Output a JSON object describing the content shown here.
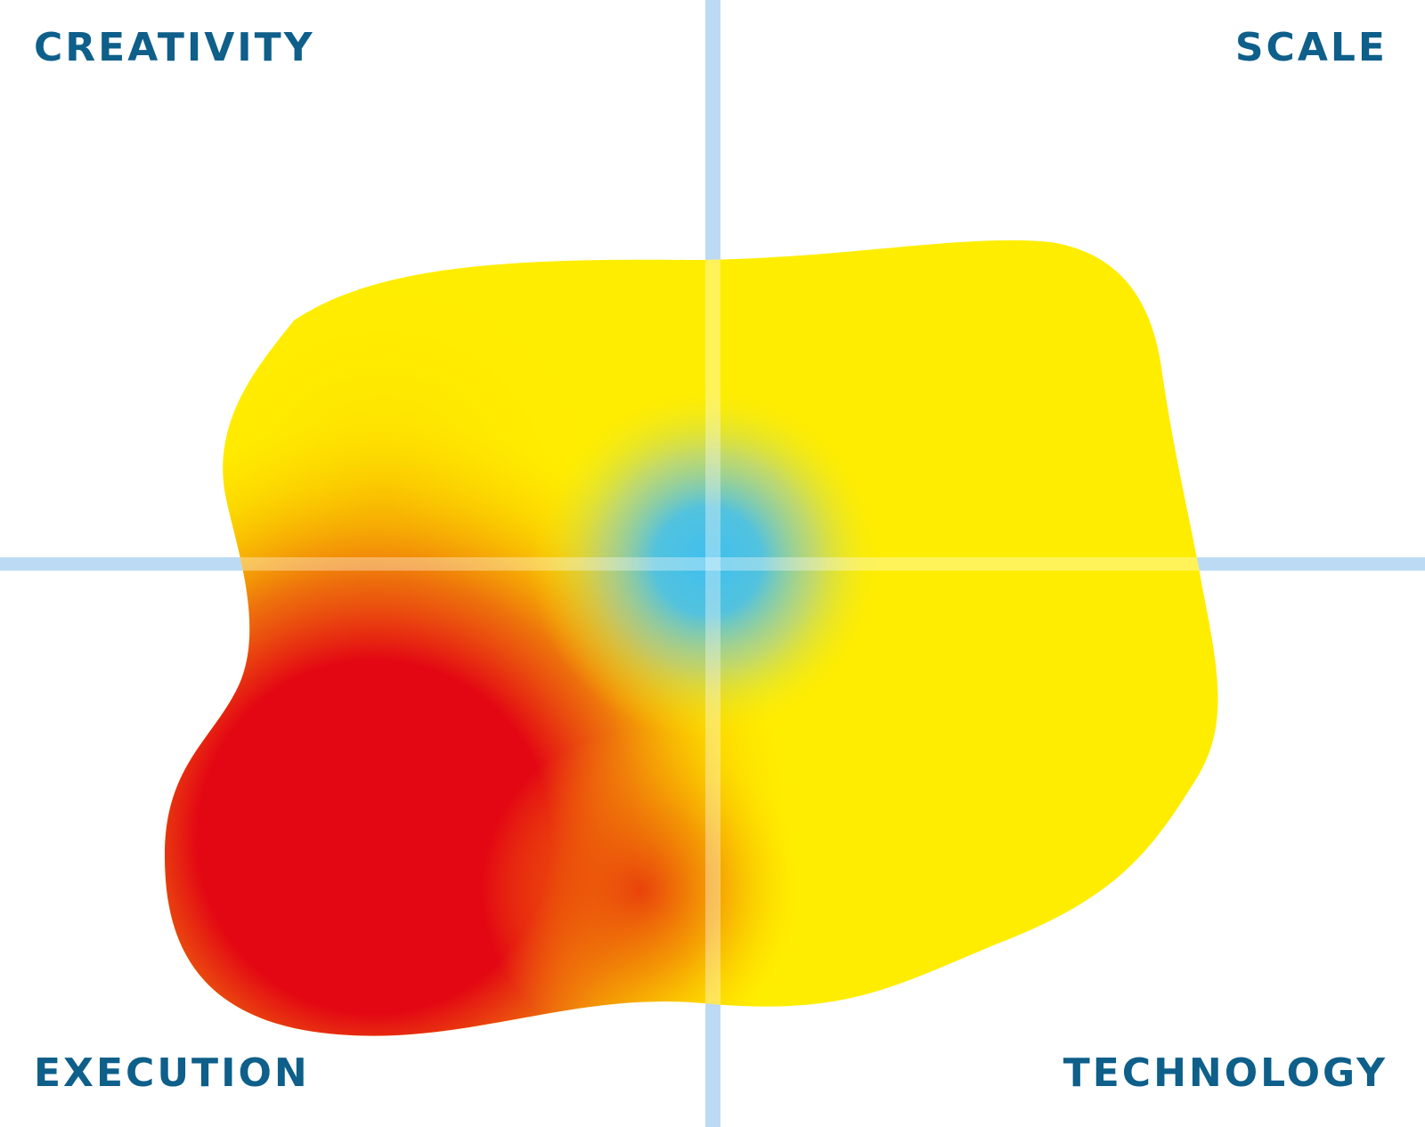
{
  "labels": {
    "top_left": "CREATIVITY",
    "top_right": "SCALE",
    "bottom_left": "EXECUTION",
    "bottom_right": "TECHNOLOGY"
  },
  "colors": {
    "label_text": "#0e5f8a",
    "axis_line": "#bcdaf3",
    "axis_line_over_blob": "#fff6c8",
    "blob_yellow": "#ffed00",
    "blob_red": "#e30613",
    "blob_blue": "#3fbfef",
    "background": "#ffffff"
  }
}
